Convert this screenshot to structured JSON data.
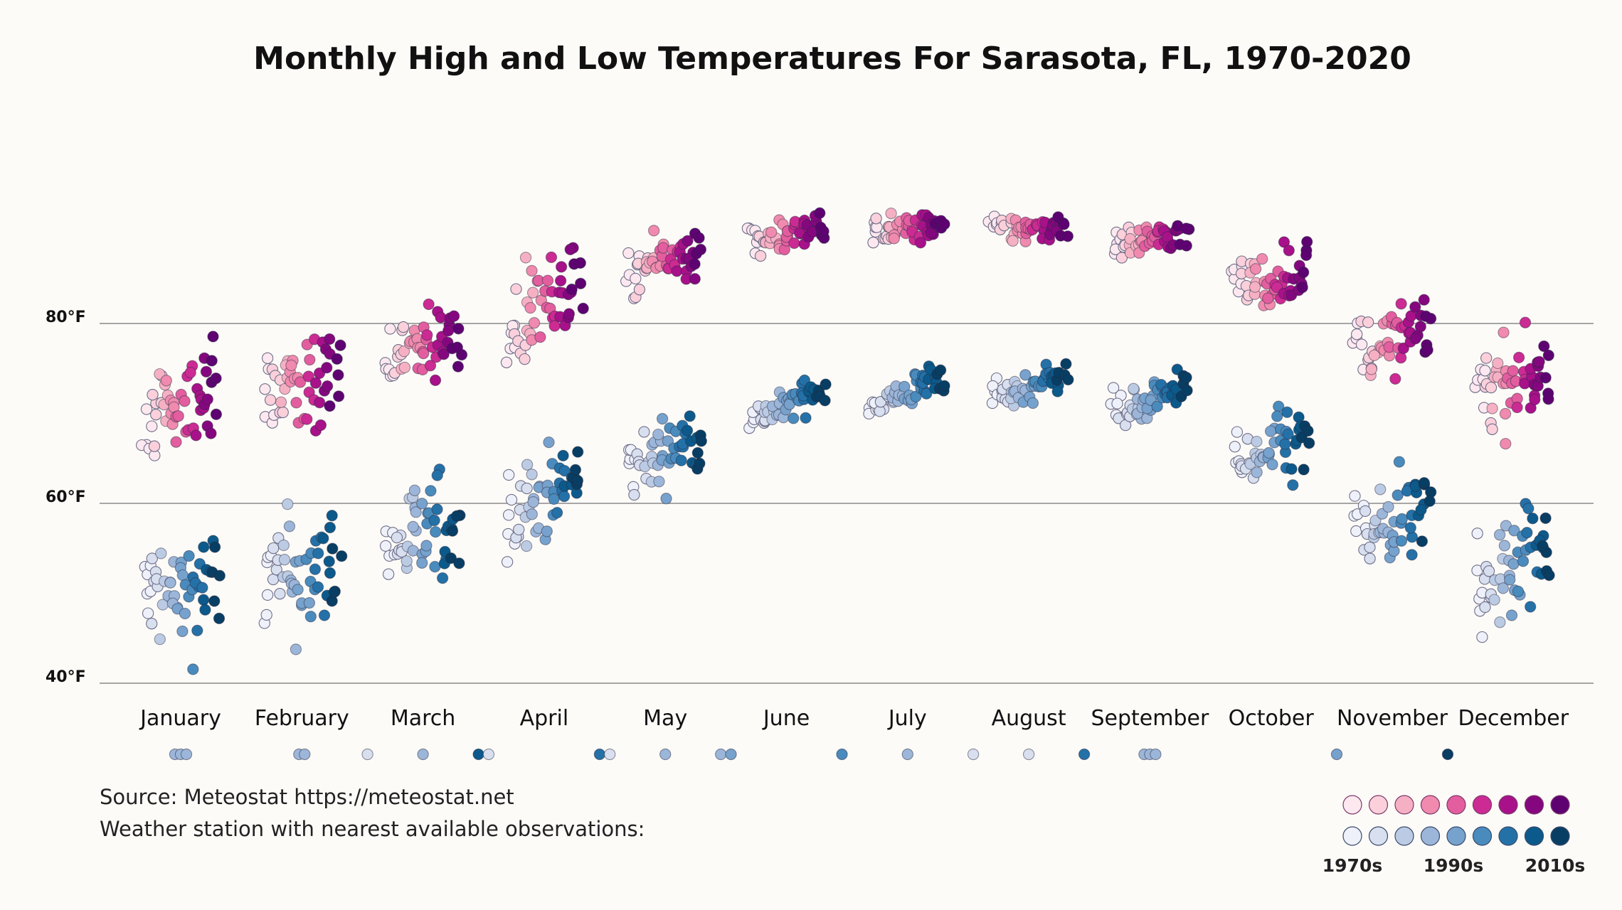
{
  "chart_data": {
    "type": "scatter",
    "title": "Monthly High and Low Temperatures For Sarasota, FL, 1970-2020",
    "y_ticks": [
      {
        "value": 80,
        "label": "80°F"
      },
      {
        "value": 60,
        "label": "60°F"
      },
      {
        "value": 40,
        "label": "40°F"
      }
    ],
    "ylim": [
      38,
      96
    ],
    "grid": true,
    "months": [
      "January",
      "February",
      "March",
      "April",
      "May",
      "June",
      "July",
      "August",
      "September",
      "October",
      "November",
      "December"
    ],
    "high_series_mean_by_decade": {
      "January": [
        69.5,
        71.5,
        70.5,
        72.0,
        72.5
      ],
      "February": [
        71.5,
        73.5,
        72.5,
        72.5,
        74.5
      ],
      "March": [
        75.5,
        76.5,
        78.0,
        77.5,
        79.0
      ],
      "April": [
        80.0,
        81.0,
        82.0,
        82.5,
        84.0
      ],
      "May": [
        86.0,
        86.5,
        87.0,
        87.5,
        88.0
      ],
      "June": [
        89.5,
        89.5,
        90.0,
        90.0,
        90.5
      ],
      "July": [
        90.5,
        90.5,
        90.5,
        90.5,
        91.0
      ],
      "August": [
        90.5,
        90.5,
        90.5,
        90.5,
        91.0
      ],
      "September": [
        89.0,
        89.0,
        89.5,
        89.5,
        90.0
      ],
      "October": [
        84.5,
        84.5,
        84.5,
        85.5,
        86.0
      ],
      "November": [
        77.5,
        77.5,
        78.0,
        78.5,
        79.0
      ],
      "December": [
        73.5,
        73.0,
        73.5,
        74.0,
        75.0
      ]
    },
    "low_series_mean_by_decade": {
      "January": [
        49.5,
        50.5,
        49.5,
        50.5,
        50.5
      ],
      "February": [
        51.0,
        52.5,
        51.5,
        51.5,
        54.0
      ],
      "March": [
        54.5,
        56.0,
        56.0,
        56.5,
        57.5
      ],
      "April": [
        59.0,
        60.0,
        60.5,
        61.0,
        62.5
      ],
      "May": [
        64.0,
        64.5,
        65.5,
        66.5,
        67.5
      ],
      "June": [
        69.5,
        70.0,
        70.5,
        71.5,
        72.5
      ],
      "July": [
        71.0,
        71.5,
        72.0,
        73.0,
        74.0
      ],
      "August": [
        72.0,
        72.0,
        72.5,
        73.5,
        74.5
      ],
      "September": [
        70.5,
        70.5,
        71.0,
        72.0,
        73.0
      ],
      "October": [
        64.0,
        64.5,
        65.0,
        66.0,
        67.0
      ],
      "November": [
        56.0,
        57.0,
        57.0,
        57.5,
        58.5
      ],
      "December": [
        52.0,
        52.0,
        52.5,
        53.5,
        55.0
      ]
    },
    "station_markers": [
      {
        "month": "January",
        "decades": [
          3,
          3,
          3
        ]
      },
      {
        "month": "February",
        "decades": [
          3,
          3
        ]
      },
      {
        "month": "March",
        "decades": [
          1,
          3,
          7
        ]
      },
      {
        "month": "April",
        "decades": [
          1,
          6
        ]
      },
      {
        "month": "May",
        "decades": [
          1,
          3,
          3
        ]
      },
      {
        "month": "June",
        "decades": [
          4,
          5
        ]
      },
      {
        "month": "July",
        "decades": [
          3
        ]
      },
      {
        "month": "August",
        "decades": [
          1,
          1,
          6
        ]
      },
      {
        "month": "September",
        "decades": [
          3,
          3,
          3
        ]
      },
      {
        "month": "November",
        "decades": [
          4,
          8
        ]
      }
    ],
    "legend": {
      "high_colors": [
        "#fde8ef",
        "#fbd0db",
        "#f6b0c4",
        "#f08aae",
        "#e35e9f",
        "#cc2b93",
        "#a8118a",
        "#85077f",
        "#5e0272"
      ],
      "low_colors": [
        "#eef1f9",
        "#d8dfef",
        "#bccbe4",
        "#9cb6d9",
        "#76a2cd",
        "#4a8bbd",
        "#2471a8",
        "#0c5a8b",
        "#083e64"
      ],
      "labels": [
        "1970s",
        "1990s",
        "2010s"
      ]
    }
  },
  "source_line": "Source: Meteostat https://meteostat.net",
  "station_line": "Weather station with nearest available observations:"
}
